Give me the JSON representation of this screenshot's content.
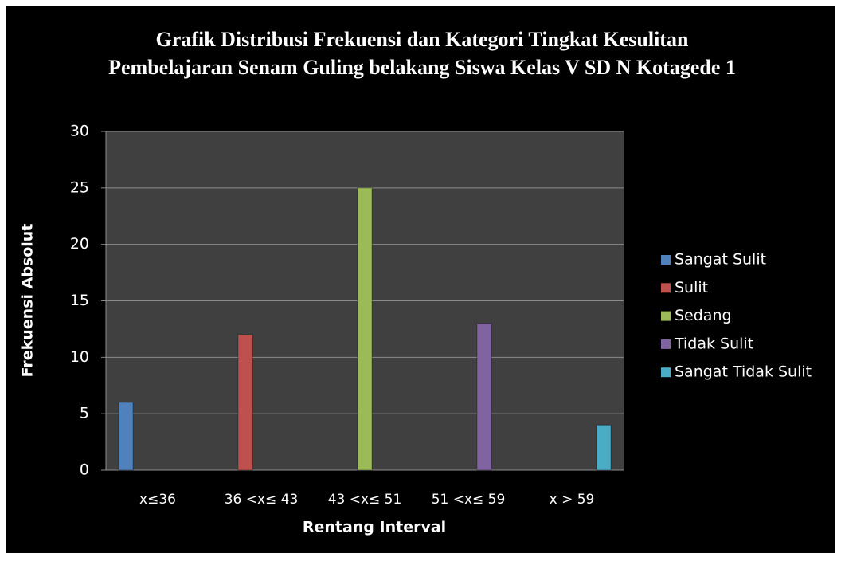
{
  "chart_data": {
    "type": "bar",
    "title": "Grafik Distribusi Frekuensi dan Kategori Tingkat Kesulitan Pembelajaran Senam Guling belakang Siswa Kelas V SD N Kotagede 1",
    "x_label": "Rentang Interval",
    "y_label": "Frekuensi Absolut",
    "categories": [
      "x≤36",
      "36 <x≤ 43",
      "43 <x≤ 51",
      "51 <x≤ 59",
      "x > 59"
    ],
    "series": [
      {
        "name": "Sangat Sulit",
        "color": "#4f81bd",
        "values": [
          6,
          null,
          null,
          null,
          null
        ]
      },
      {
        "name": "Sulit",
        "color": "#c0504d",
        "values": [
          null,
          12,
          null,
          null,
          null
        ]
      },
      {
        "name": "Sedang",
        "color": "#9bbb59",
        "values": [
          null,
          null,
          25,
          null,
          null
        ]
      },
      {
        "name": "Tidak Sulit",
        "color": "#8064a2",
        "values": [
          null,
          null,
          null,
          13,
          null
        ]
      },
      {
        "name": "Sangat Tidak Sulit",
        "color": "#4bacc6",
        "values": [
          null,
          null,
          null,
          null,
          4
        ]
      }
    ],
    "ylim": [
      0,
      30
    ],
    "yticks": [
      0,
      5,
      10,
      15,
      20,
      25,
      30
    ],
    "grid": true,
    "legend": "right"
  }
}
